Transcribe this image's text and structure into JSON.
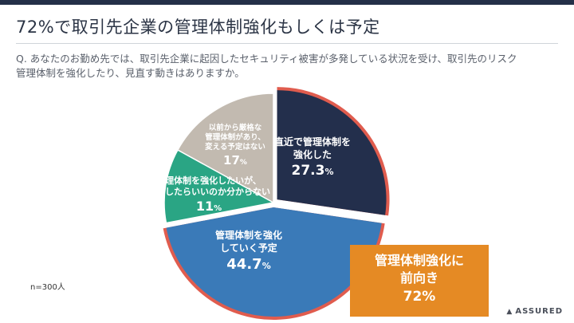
{
  "slide": {
    "title": "72%で取引先企業の管理体制強化もしくは予定",
    "question": "Q. あなたのお勤め先では、取引先企業に起因したセキュリティ被害が多発している状況を受け、取引先のリスク管理体制を強化したり、見直す動きはありますか。",
    "sample_size": "n=300人",
    "callout": {
      "line1": "管理体制強化に",
      "line2": "前向き",
      "value": "72%"
    },
    "logo": {
      "mark": "▲",
      "text": "ASSURED"
    }
  },
  "chart_data": {
    "type": "pie",
    "slices": [
      {
        "label": [
          "直近で管理体制を",
          "強化した"
        ],
        "value": 27.3,
        "value_text": "27.3",
        "color": "#232f4c"
      },
      {
        "label": [
          "管理体制を強化",
          "していく予定"
        ],
        "value": 44.7,
        "value_text": "44.7",
        "color": "#3a7ab8"
      },
      {
        "label": [
          "管理体制を強化したいが、",
          "何をしたらいいのか分からない"
        ],
        "value": 11,
        "value_text": "11",
        "color": "#2aa584"
      },
      {
        "label": [
          "以前から厳格な",
          "管理体制があり、",
          "変える予定はない"
        ],
        "value": 17,
        "value_text": "17",
        "color": "#c2bab0"
      }
    ],
    "unit": "%",
    "highlight": {
      "slices": [
        0,
        1
      ],
      "color": "#e05c4e"
    }
  }
}
